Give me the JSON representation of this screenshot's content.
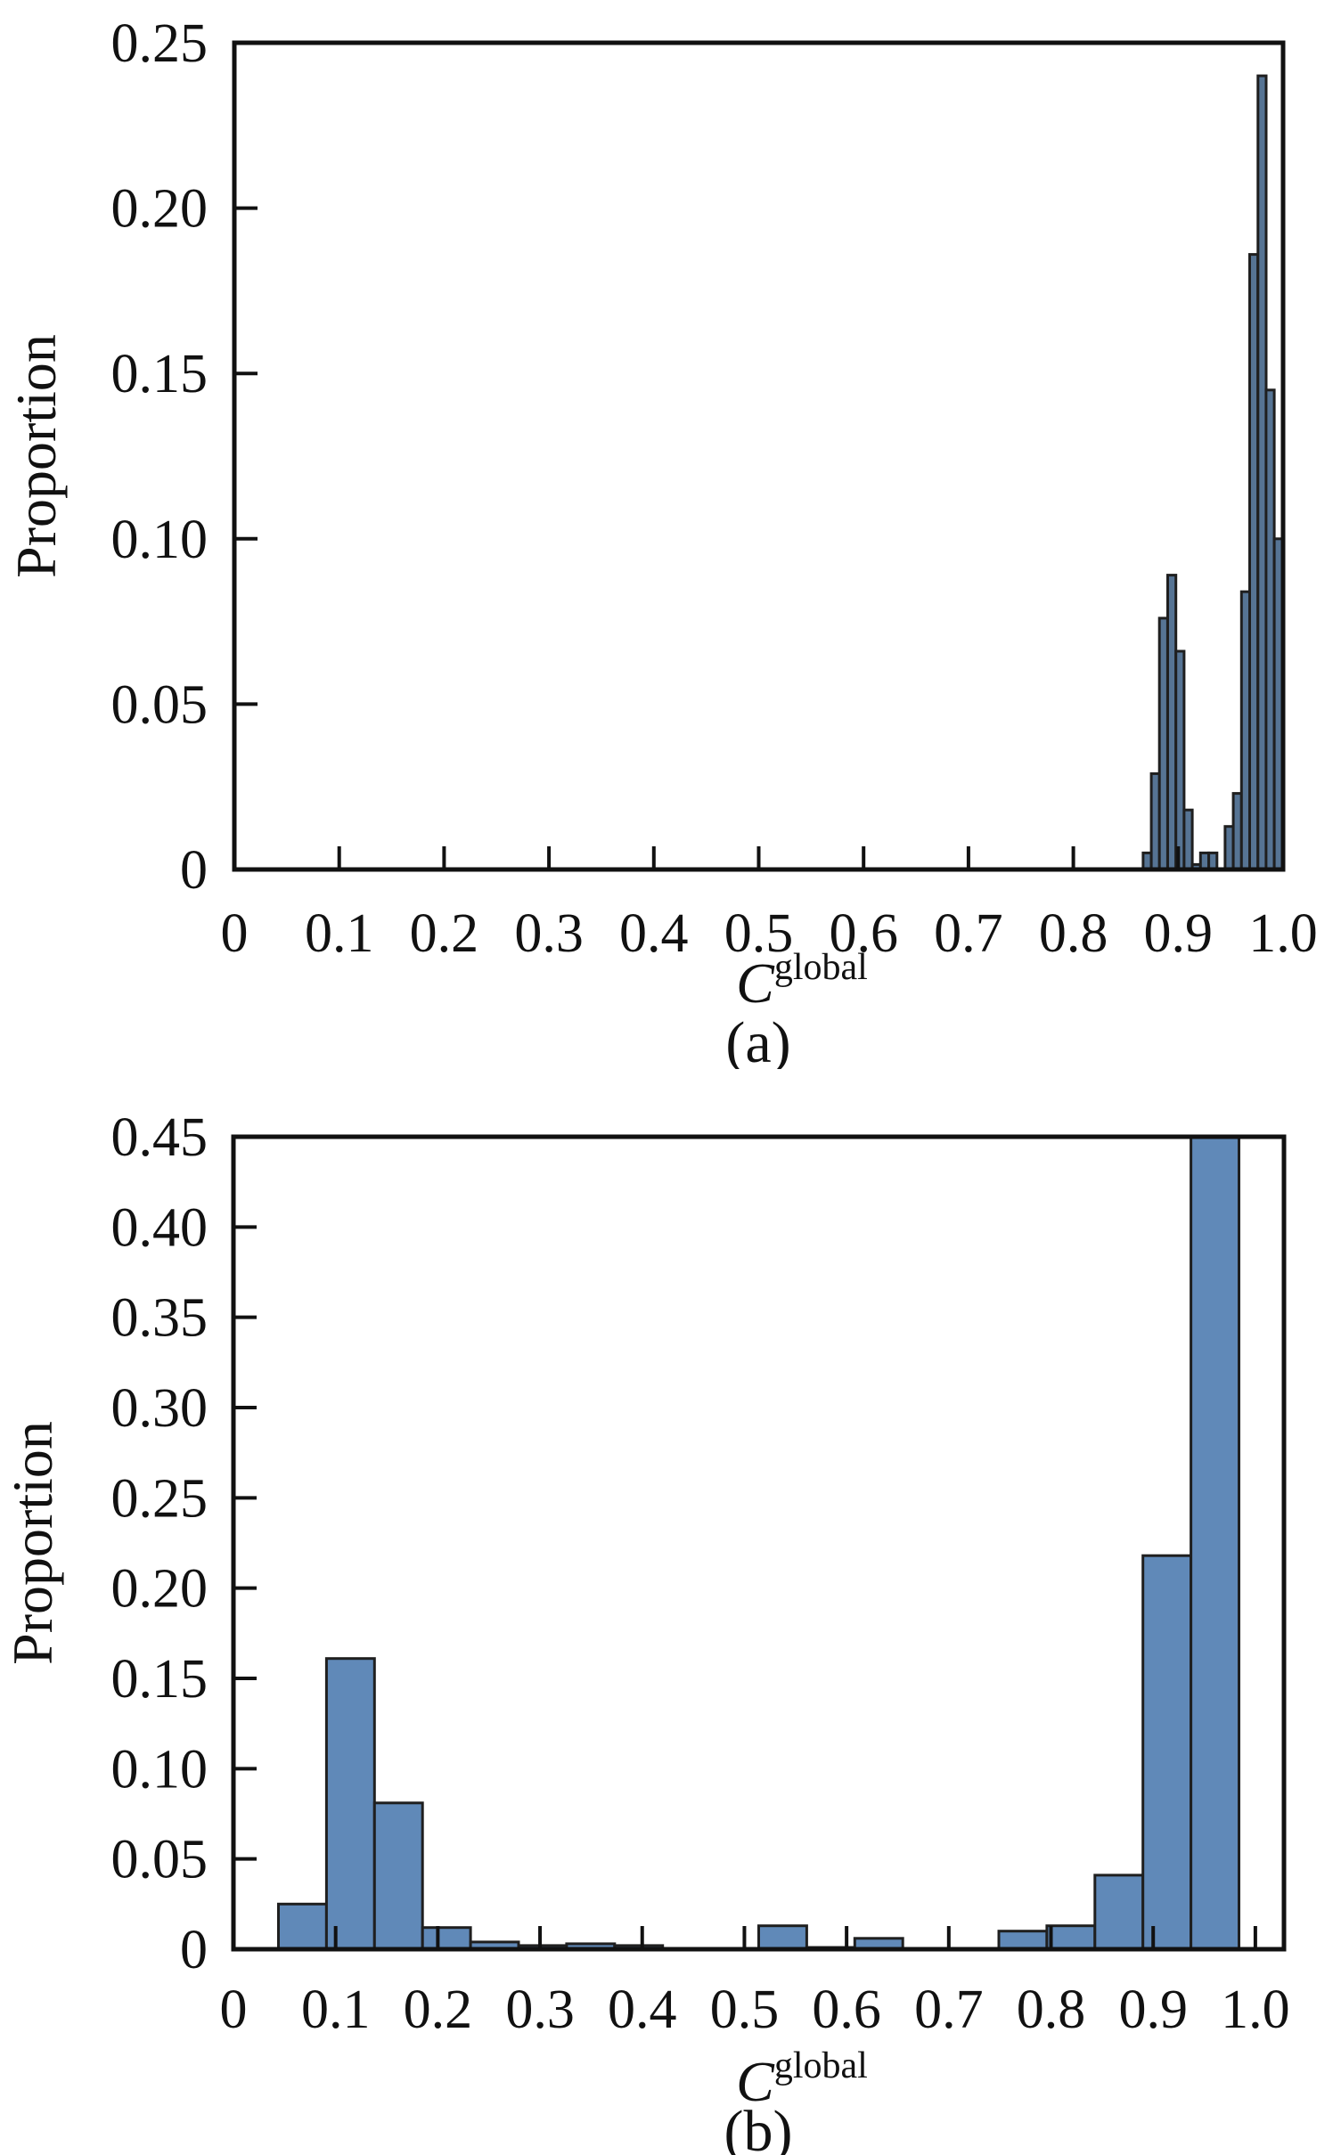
{
  "figure": {
    "background": "#ffffff",
    "text_color": "#111111",
    "axis_color": "#111111"
  },
  "chart_data": [
    {
      "id": "a",
      "type": "bar",
      "title": "",
      "xlabel": "C",
      "xlabel_superscript": "global",
      "ylabel": "Proportion",
      "caption": "(a)",
      "legend": "none",
      "grid": false,
      "xlim": [
        0,
        1.0
      ],
      "ylim": [
        0,
        0.25
      ],
      "bar_fill": "#567494",
      "bar_edge": "#1f1f1f",
      "x_ticks": [
        {
          "v": 0.0,
          "label": "0"
        },
        {
          "v": 0.1,
          "label": "0.1"
        },
        {
          "v": 0.2,
          "label": "0.2"
        },
        {
          "v": 0.3,
          "label": "0.3"
        },
        {
          "v": 0.4,
          "label": "0.4"
        },
        {
          "v": 0.5,
          "label": "0.5"
        },
        {
          "v": 0.6,
          "label": "0.6"
        },
        {
          "v": 0.7,
          "label": "0.7"
        },
        {
          "v": 0.8,
          "label": "0.8"
        },
        {
          "v": 0.9,
          "label": "0.9"
        },
        {
          "v": 1.0,
          "label": "1.0"
        }
      ],
      "y_ticks": [
        {
          "v": 0.0,
          "label": "0"
        },
        {
          "v": 0.05,
          "label": "0.05"
        },
        {
          "v": 0.1,
          "label": "0.10"
        },
        {
          "v": 0.15,
          "label": "0.15"
        },
        {
          "v": 0.2,
          "label": "0.20"
        },
        {
          "v": 0.25,
          "label": "0.25"
        }
      ],
      "bin_width": 0.00782,
      "bins": [
        {
          "x": 0.8665,
          "p": 0.005
        },
        {
          "x": 0.8743,
          "p": 0.029
        },
        {
          "x": 0.8821,
          "p": 0.076
        },
        {
          "x": 0.89,
          "p": 0.089
        },
        {
          "x": 0.8978,
          "p": 0.066
        },
        {
          "x": 0.9056,
          "p": 0.018
        },
        {
          "x": 0.9134,
          "p": 0.0015
        },
        {
          "x": 0.9212,
          "p": 0.005
        },
        {
          "x": 0.9291,
          "p": 0.005
        },
        {
          "x": 0.9369,
          "p": 0.0
        },
        {
          "x": 0.9447,
          "p": 0.013
        },
        {
          "x": 0.9525,
          "p": 0.023
        },
        {
          "x": 0.9603,
          "p": 0.084
        },
        {
          "x": 0.9681,
          "p": 0.186
        },
        {
          "x": 0.976,
          "p": 0.24
        },
        {
          "x": 0.9838,
          "p": 0.145
        },
        {
          "x": 0.9916,
          "p": 0.1
        }
      ]
    },
    {
      "id": "b",
      "type": "bar",
      "title": "",
      "xlabel": "C",
      "xlabel_superscript": "global",
      "ylabel": "Proportion",
      "caption": "(b)",
      "legend": "none",
      "grid": false,
      "xlim": [
        0,
        1.028
      ],
      "ylim": [
        0,
        0.45
      ],
      "bar_fill": "#6089b8",
      "bar_edge": "#1f1f1f",
      "x_ticks": [
        {
          "v": 0.0,
          "label": "0"
        },
        {
          "v": 0.1,
          "label": "0.1"
        },
        {
          "v": 0.2,
          "label": "0.2"
        },
        {
          "v": 0.3,
          "label": "0.3"
        },
        {
          "v": 0.4,
          "label": "0.4"
        },
        {
          "v": 0.5,
          "label": "0.5"
        },
        {
          "v": 0.6,
          "label": "0.6"
        },
        {
          "v": 0.7,
          "label": "0.7"
        },
        {
          "v": 0.8,
          "label": "0.8"
        },
        {
          "v": 0.9,
          "label": "0.9"
        },
        {
          "v": 1.0,
          "label": "1.0"
        }
      ],
      "y_ticks": [
        {
          "v": 0.0,
          "label": "0"
        },
        {
          "v": 0.05,
          "label": "0.05"
        },
        {
          "v": 0.1,
          "label": "0.10"
        },
        {
          "v": 0.15,
          "label": "0.15"
        },
        {
          "v": 0.2,
          "label": "0.20"
        },
        {
          "v": 0.25,
          "label": "0.25"
        },
        {
          "v": 0.3,
          "label": "0.30"
        },
        {
          "v": 0.35,
          "label": "0.35"
        },
        {
          "v": 0.4,
          "label": "0.40"
        },
        {
          "v": 0.45,
          "label": "0.45"
        }
      ],
      "bin_width": 0.047,
      "bins": [
        {
          "x": 0.044,
          "p": 0.025
        },
        {
          "x": 0.091,
          "p": 0.161
        },
        {
          "x": 0.138,
          "p": 0.081
        },
        {
          "x": 0.185,
          "p": 0.012
        },
        {
          "x": 0.232,
          "p": 0.004
        },
        {
          "x": 0.279,
          "p": 0.002
        },
        {
          "x": 0.326,
          "p": 0.003
        },
        {
          "x": 0.373,
          "p": 0.002
        },
        {
          "x": 0.42,
          "p": 0.0
        },
        {
          "x": 0.467,
          "p": 0.0
        },
        {
          "x": 0.514,
          "p": 0.013
        },
        {
          "x": 0.561,
          "p": 0.001
        },
        {
          "x": 0.608,
          "p": 0.006
        },
        {
          "x": 0.655,
          "p": 0.0
        },
        {
          "x": 0.702,
          "p": 0.0
        },
        {
          "x": 0.749,
          "p": 0.01
        },
        {
          "x": 0.796,
          "p": 0.013
        },
        {
          "x": 0.843,
          "p": 0.041
        },
        {
          "x": 0.89,
          "p": 0.218
        },
        {
          "x": 0.937,
          "p": 0.46
        }
      ]
    }
  ]
}
